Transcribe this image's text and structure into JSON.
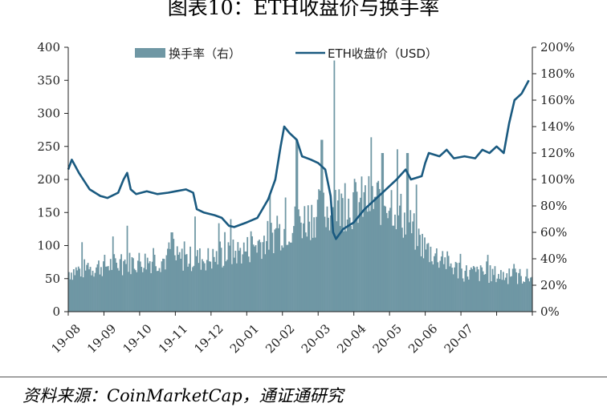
{
  "title": "图表10：ETH收盘价与换手率",
  "source": "资料来源：CoinMarketCap，通证通研究",
  "colors": {
    "bar": "#6f97a4",
    "line": "#1a5a80",
    "axis": "#222222"
  },
  "chart_data": {
    "type": "bar+line",
    "x_ticks": [
      "19-08",
      "19-09",
      "19-10",
      "19-11",
      "19-12",
      "20-01",
      "20-02",
      "20-03",
      "20-04",
      "20-05",
      "20-06",
      "20-07"
    ],
    "left_axis": {
      "ylim": [
        0,
        400
      ],
      "ticks": [
        0,
        50,
        100,
        150,
        200,
        250,
        300,
        350,
        400
      ]
    },
    "right_axis": {
      "ylim": [
        0,
        2.0
      ],
      "ticks": [
        "0%",
        "20%",
        "40%",
        "60%",
        "80%",
        "100%",
        "120%",
        "140%",
        "160%",
        "180%",
        "200%"
      ]
    },
    "legend": {
      "placement": "top",
      "entries": [
        "换手率（右）",
        "ETH收盘价（USD）"
      ]
    },
    "series": [
      {
        "name": "换手率（右）",
        "type": "bar",
        "axis": "right",
        "monthly_levels": [
          0.3,
          0.35,
          0.38,
          0.4,
          0.4,
          0.47,
          0.62,
          0.75,
          0.82,
          0.86,
          0.48,
          0.3,
          0.28
        ],
        "spikes": [
          {
            "month": 1.65,
            "value": 0.65
          },
          {
            "month": 2.9,
            "value": 0.6
          },
          {
            "month": 3.55,
            "value": 0.72
          },
          {
            "month": 4.55,
            "value": 0.7
          },
          {
            "month": 6.4,
            "value": 1.3
          },
          {
            "month": 7.1,
            "value": 1.3
          },
          {
            "month": 7.45,
            "value": 1.9
          },
          {
            "month": 8.8,
            "value": 1.2
          },
          {
            "month": 9.5,
            "value": 1.2
          }
        ]
      },
      {
        "name": "ETH收盘价（USD）",
        "type": "line",
        "axis": "left",
        "points": [
          [
            0,
            215
          ],
          [
            0.1,
            230
          ],
          [
            0.3,
            210
          ],
          [
            0.6,
            185
          ],
          [
            0.9,
            175
          ],
          [
            1.1,
            172
          ],
          [
            1.4,
            180
          ],
          [
            1.55,
            200
          ],
          [
            1.65,
            210
          ],
          [
            1.75,
            185
          ],
          [
            1.9,
            178
          ],
          [
            2.2,
            182
          ],
          [
            2.5,
            178
          ],
          [
            2.8,
            180
          ],
          [
            3.0,
            182
          ],
          [
            3.3,
            185
          ],
          [
            3.5,
            180
          ],
          [
            3.6,
            155
          ],
          [
            3.8,
            150
          ],
          [
            4.1,
            146
          ],
          [
            4.3,
            142
          ],
          [
            4.5,
            130
          ],
          [
            4.65,
            128
          ],
          [
            5.0,
            135
          ],
          [
            5.3,
            142
          ],
          [
            5.6,
            170
          ],
          [
            5.8,
            200
          ],
          [
            5.95,
            250
          ],
          [
            6.05,
            280
          ],
          [
            6.2,
            270
          ],
          [
            6.4,
            260
          ],
          [
            6.55,
            235
          ],
          [
            6.8,
            230
          ],
          [
            7.0,
            225
          ],
          [
            7.2,
            215
          ],
          [
            7.35,
            175
          ],
          [
            7.42,
            120
          ],
          [
            7.5,
            110
          ],
          [
            7.7,
            125
          ],
          [
            8.0,
            135
          ],
          [
            8.3,
            155
          ],
          [
            8.6,
            170
          ],
          [
            8.9,
            185
          ],
          [
            9.2,
            200
          ],
          [
            9.45,
            215
          ],
          [
            9.6,
            200
          ],
          [
            9.9,
            205
          ],
          [
            10.0,
            225
          ],
          [
            10.1,
            240
          ],
          [
            10.4,
            235
          ],
          [
            10.6,
            245
          ],
          [
            10.8,
            232
          ],
          [
            11.1,
            235
          ],
          [
            11.4,
            232
          ],
          [
            11.6,
            245
          ],
          [
            11.8,
            240
          ],
          [
            12.0,
            250
          ],
          [
            12.2,
            240
          ],
          [
            12.35,
            285
          ],
          [
            12.5,
            320
          ],
          [
            12.7,
            330
          ],
          [
            12.9,
            350
          ]
        ]
      }
    ]
  }
}
